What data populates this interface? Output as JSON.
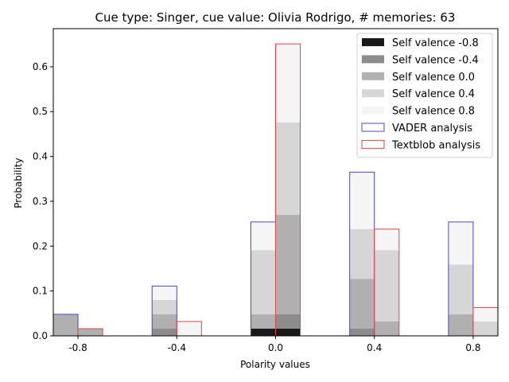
{
  "chart_data": {
    "type": "bar",
    "title": "Cue type: Singer, cue value: Olivia Rodrigo, # memories: 63",
    "xlabel": "Polarity values",
    "ylabel": "Probability",
    "categories": [
      "-0.8",
      "-0.4",
      "0.0",
      "0.4",
      "0.8"
    ],
    "x": [
      -0.8,
      -0.4,
      0.0,
      0.4,
      0.8
    ],
    "xlim": [
      -0.9,
      0.9
    ],
    "ylim": [
      0,
      0.685
    ],
    "yticks": [
      "0.0",
      "0.1",
      "0.2",
      "0.3",
      "0.4",
      "0.5",
      "0.6"
    ],
    "ytick_values": [
      0,
      0.1,
      0.2,
      0.3,
      0.4,
      0.5,
      0.6
    ],
    "stacked": true,
    "legend_position": "top-right",
    "series": [
      {
        "name": "Self valence -0.8",
        "group": "self",
        "color": "#1a1a1a",
        "vader": [
          0,
          0,
          0.016,
          0,
          0
        ],
        "textblob": [
          0,
          0,
          0.016,
          0,
          0
        ]
      },
      {
        "name": "Self valence -0.4",
        "group": "self",
        "color": "#8c8c8c",
        "vader": [
          0,
          0.016,
          0,
          0.016,
          0
        ],
        "textblob": [
          0,
          0,
          0.032,
          0,
          0
        ]
      },
      {
        "name": "Self valence 0.0",
        "group": "self",
        "color": "#b0b0b0",
        "vader": [
          0.048,
          0.032,
          0.032,
          0.111,
          0.048
        ],
        "textblob": [
          0.016,
          0,
          0.222,
          0.032,
          0
        ]
      },
      {
        "name": "Self valence 0.4",
        "group": "self",
        "color": "#d6d6d6",
        "vader": [
          0,
          0.032,
          0.143,
          0.111,
          0.111
        ],
        "textblob": [
          0,
          0,
          0.206,
          0.159,
          0.032
        ]
      },
      {
        "name": "Self valence 0.8",
        "group": "self",
        "color": "#f5f5f5",
        "vader": [
          0,
          0.032,
          0.063,
          0.127,
          0.095
        ],
        "textblob": [
          0,
          0.032,
          0.175,
          0.048,
          0.032
        ]
      },
      {
        "name": "VADER analysis",
        "group": "outline",
        "color": "#4444dd",
        "values": [
          0.048,
          0.111,
          0.254,
          0.365,
          0.254
        ]
      },
      {
        "name": "Textblob analysis",
        "group": "outline",
        "color": "#e04444",
        "values": [
          0.016,
          0.032,
          0.651,
          0.238,
          0.063
        ]
      }
    ]
  }
}
